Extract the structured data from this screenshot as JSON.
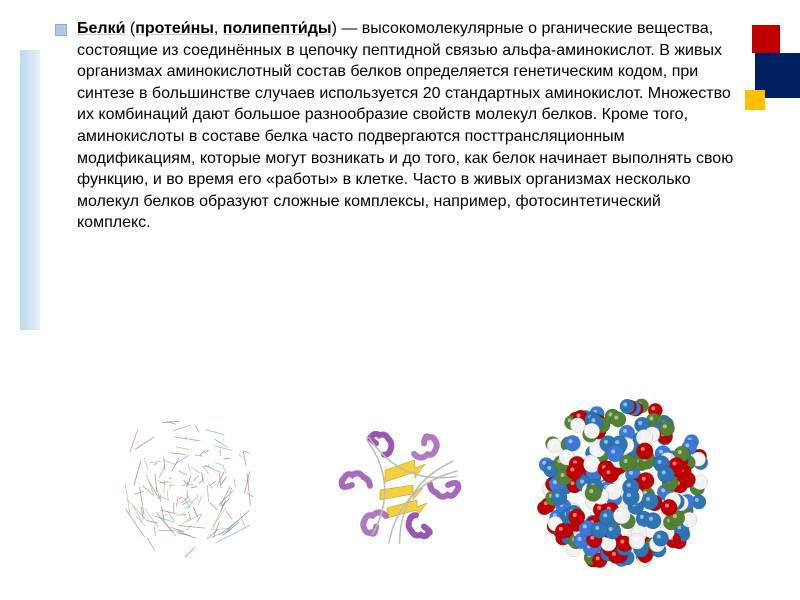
{
  "bullet_color": "#b4c7e7",
  "text_color": "#000000",
  "fontsize": 16,
  "highlight_terms": {
    "t1": "Белки́",
    "t2": "протеи́ны",
    "t3": "полипепти́ды"
  },
  "paragraph_parts": {
    "p0": " (",
    "p1": ", ",
    "p2": ") — высокомолекулярные о рганические вещества, состоящие из соединённых в цепочку пептидной связью альфа-аминокислот. В живых организмах аминокислотный состав белков определяется генетическим кодом, при синтезе в большинстве случаев используется 20 стандартных аминокислот. Множество их комбинаций дают большое разнообразие свойств молекул белков. Кроме того, аминокислоты в составе белка часто подвергаются посттрансляционным модификациям, которые могут возникать и до того, как белок начинает выполнять свою функцию, и во время его «работы» в клетке. Часто в живых организмах несколько молекул белков образуют сложные комплексы, например, фотосинтетический комплекс."
  },
  "decorations": {
    "top_squares": [
      {
        "color": "#c00000"
      },
      {
        "color": "#002060"
      },
      {
        "color": "#ffc000"
      }
    ],
    "left_bar_gradient": [
      "#bdd7ee",
      "#e8f0fa"
    ]
  },
  "molecules": {
    "wireframe": {
      "type": "wireframe",
      "size": 150,
      "line_colors": [
        "#6fa8dc",
        "#e06666",
        "#93c47d",
        "#888888",
        "#7a7a7a"
      ],
      "line_count": 140
    },
    "ribbon": {
      "type": "ribbon",
      "size": 150,
      "helix_colors": [
        "#9b59b6",
        "#8e44ad",
        "#a569bd"
      ],
      "sheet_color": "#f4d03f",
      "loop_color": "#bbbbbb"
    },
    "spacefill": {
      "type": "spacefill",
      "size": 170,
      "sphere_colors": [
        "#2e75b6",
        "#c00000",
        "#548235",
        "#f2f2f2",
        "#3c78d8"
      ],
      "sphere_count": 220
    }
  }
}
